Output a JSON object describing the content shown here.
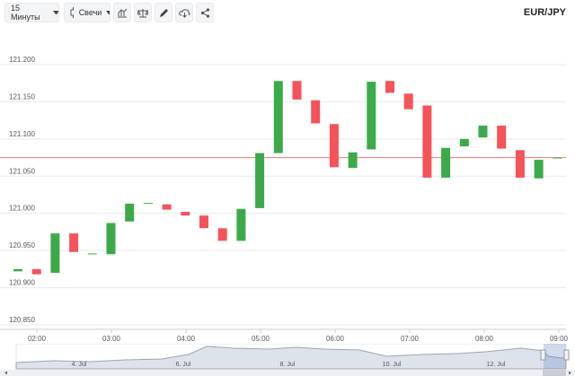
{
  "toolbar": {
    "interval_label": "15 Минуты",
    "chart_type_label": "Свечи",
    "icons": [
      "indicators-icon",
      "compare-icon",
      "draw-icon",
      "cloud-download-icon",
      "share-icon"
    ]
  },
  "instrument": "EUR/JPY",
  "colors": {
    "up": "#3daa4a",
    "down": "#f4535a",
    "price_line": "#e8786f",
    "grid": "#e9e9ec"
  },
  "chart_data": {
    "type": "candlestick",
    "y_ticks": [
      "121.200",
      "121.150",
      "121.100",
      "121.050",
      "121.000",
      "120.950",
      "120.900",
      "120.850"
    ],
    "ylim": [
      120.85,
      121.2
    ],
    "x_ticks": [
      "02:00",
      "03:00",
      "04:00",
      "05:00",
      "06:00",
      "07:00",
      "08:00",
      "09:00"
    ],
    "current_price": 121.075,
    "candles": [
      {
        "o": 120.922,
        "c": 120.925
      },
      {
        "o": 120.925,
        "c": 120.918
      },
      {
        "o": 120.92,
        "c": 120.973
      },
      {
        "o": 120.973,
        "c": 120.948
      },
      {
        "o": 120.946,
        "c": 120.946
      },
      {
        "o": 120.945,
        "c": 120.987
      },
      {
        "o": 120.989,
        "c": 121.013
      },
      {
        "o": 121.014,
        "c": 121.014
      },
      {
        "o": 121.012,
        "c": 121.005
      },
      {
        "o": 121.002,
        "c": 120.997
      },
      {
        "o": 120.997,
        "c": 120.98
      },
      {
        "o": 120.98,
        "c": 120.963
      },
      {
        "o": 120.963,
        "c": 121.006
      },
      {
        "o": 121.007,
        "c": 121.081
      },
      {
        "o": 121.081,
        "c": 121.178
      },
      {
        "o": 121.178,
        "c": 121.153
      },
      {
        "o": 121.152,
        "c": 121.121
      },
      {
        "o": 121.12,
        "c": 121.062
      },
      {
        "o": 121.061,
        "c": 121.082
      },
      {
        "o": 121.086,
        "c": 121.177
      },
      {
        "o": 121.178,
        "c": 121.162
      },
      {
        "o": 121.161,
        "c": 121.14
      },
      {
        "o": 121.145,
        "c": 121.048
      },
      {
        "o": 121.048,
        "c": 121.088
      },
      {
        "o": 121.09,
        "c": 121.1
      },
      {
        "o": 121.102,
        "c": 121.118
      },
      {
        "o": 121.118,
        "c": 121.087
      },
      {
        "o": 121.085,
        "c": 121.048
      },
      {
        "o": 121.047,
        "c": 121.072
      },
      {
        "o": 121.075,
        "c": 121.075
      }
    ]
  },
  "navigator": {
    "date_labels": [
      "4. Jul",
      "6. Jul",
      "8. Jul",
      "10. Jul",
      "12. Jul"
    ]
  }
}
